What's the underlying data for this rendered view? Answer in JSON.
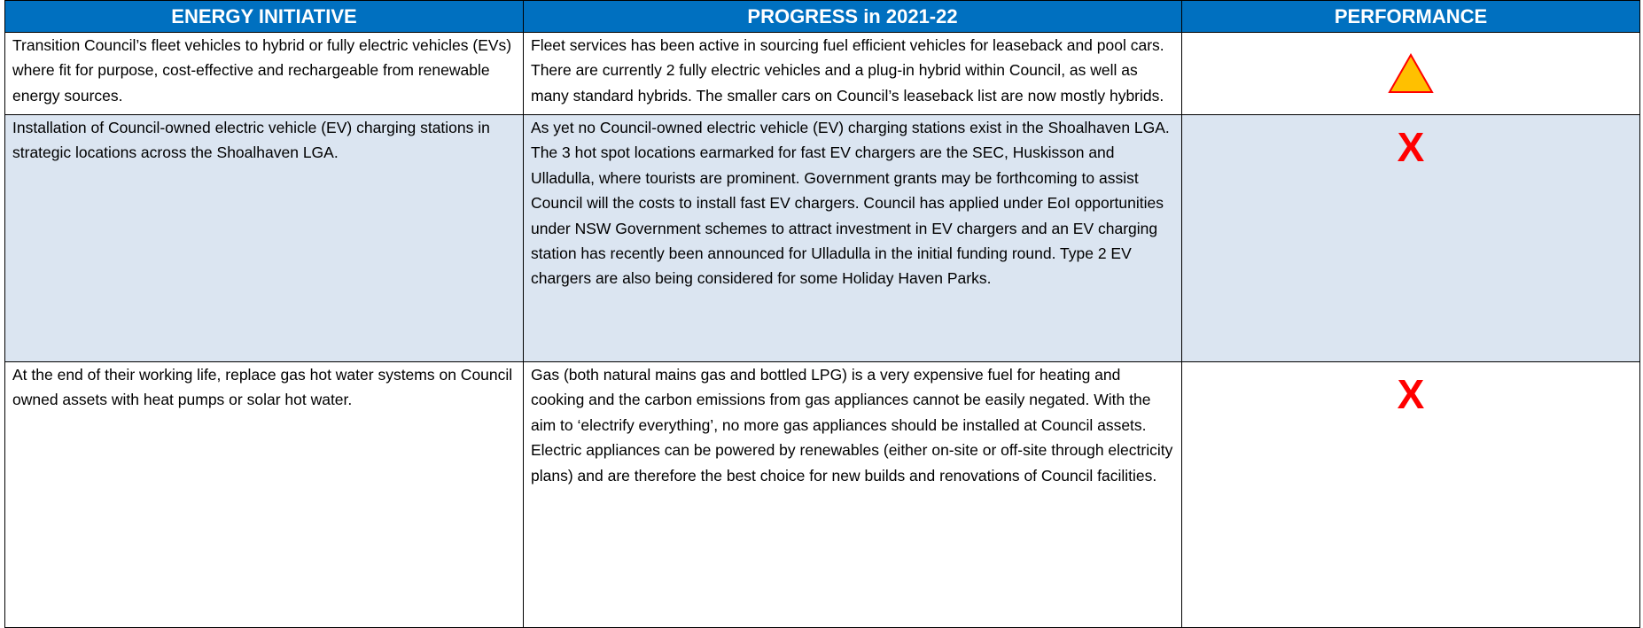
{
  "table": {
    "header": [
      "ENERGY INITIATIVE",
      "PROGRESS in 2021-22",
      "PERFORMANCE"
    ],
    "rows": [
      {
        "initiative": "Transition Council’s fleet vehicles to hybrid or fully electric vehicles (EVs) where fit for purpose, cost-effective and rechargeable from renewable energy sources.",
        "progress": "Fleet services has been active in sourcing fuel efficient vehicles for leaseback and pool cars.  There are currently 2 fully electric vehicles and a plug-in hybrid within Council, as well as many standard hybrids.  The smaller cars on Council’s leaseback list are now mostly hybrids."
      },
      {
        "initiative": "Installation of Council-owned electric vehicle (EV) charging stations in strategic locations across the Shoalhaven LGA.",
        "progress": "As yet no Council-owned electric vehicle (EV) charging stations exist in the Shoalhaven LGA.  The 3 hot spot locations earmarked for fast EV chargers are the SEC, Huskisson and Ulladulla, where tourists are prominent.  Government grants may be forthcoming to assist Council will the costs to install fast EV chargers. Council has applied under EoI opportunities under NSW Government schemes to attract investment in EV chargers and an EV charging station has recently been announced for Ulladulla in the initial funding round.  Type 2 EV chargers are also being considered for some Holiday Haven Parks.",
        "performance": "X"
      },
      {
        "initiative": "At the end of their working life, replace gas hot water systems on Council owned assets with heat pumps or solar hot water.",
        "progress": "Gas (both natural mains gas and bottled LPG) is a very expensive fuel for heating and cooking and the carbon emissions from gas appliances cannot be easily negated. With the aim to ‘electrify everything’, no more gas appliances should be installed at Council assets.  Electric appliances can be powered by renewables (either on-site or off-site through electricity plans) and are therefore the best choice for new builds and renovations of Council facilities.",
        "performance": "X"
      }
    ]
  }
}
